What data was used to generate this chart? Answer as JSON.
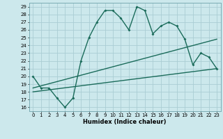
{
  "xlabel": "Humidex (Indice chaleur)",
  "ylabel": "",
  "bg_color": "#cce8ec",
  "grid_color": "#aacdd4",
  "line_color": "#1a6b5a",
  "xlim": [
    -0.5,
    23.5
  ],
  "ylim": [
    15.5,
    29.5
  ],
  "xticks": [
    0,
    1,
    2,
    3,
    4,
    5,
    6,
    7,
    8,
    9,
    10,
    11,
    12,
    13,
    14,
    15,
    16,
    17,
    18,
    19,
    20,
    21,
    22,
    23
  ],
  "yticks": [
    16,
    17,
    18,
    19,
    20,
    21,
    22,
    23,
    24,
    25,
    26,
    27,
    28,
    29
  ],
  "main_x": [
    0,
    1,
    2,
    3,
    4,
    5,
    6,
    7,
    8,
    9,
    10,
    11,
    12,
    13,
    14,
    15,
    16,
    17,
    18,
    19,
    20,
    21,
    22,
    23
  ],
  "main_y": [
    20.0,
    18.5,
    18.5,
    17.2,
    16.0,
    17.2,
    22.0,
    25.0,
    27.0,
    28.5,
    28.5,
    27.5,
    26.0,
    29.0,
    28.5,
    25.5,
    26.5,
    27.0,
    26.5,
    24.8,
    21.5,
    23.0,
    22.5,
    21.0
  ],
  "line2_x": [
    0,
    23
  ],
  "line2_y": [
    18.5,
    24.8
  ],
  "line3_x": [
    0,
    23
  ],
  "line3_y": [
    18.0,
    21.0
  ]
}
